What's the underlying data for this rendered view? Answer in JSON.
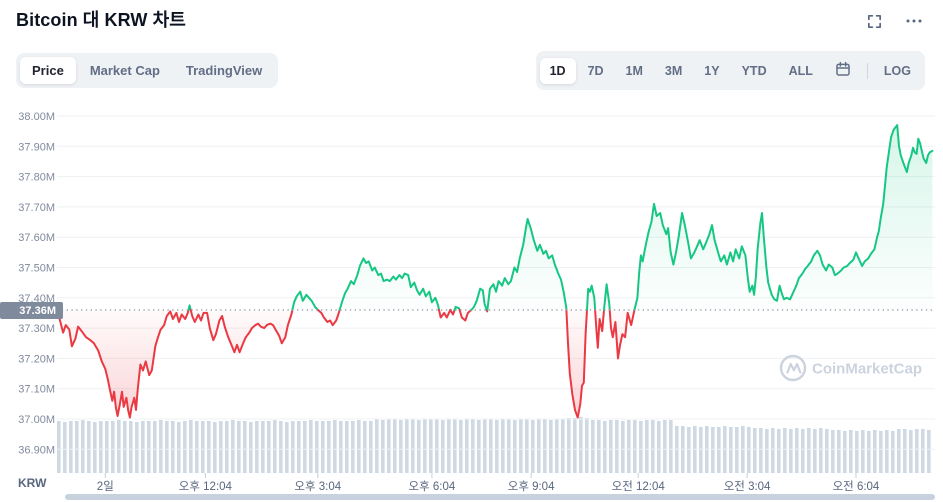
{
  "header": {
    "title": "Bitcoin 대 KRW 차트"
  },
  "tabs": {
    "items": [
      "Price",
      "Market Cap",
      "TradingView"
    ],
    "active": "Price"
  },
  "ranges": {
    "items": [
      "1D",
      "7D",
      "1M",
      "3M",
      "1Y",
      "YTD",
      "ALL"
    ],
    "active": "1D",
    "log_label": "LOG"
  },
  "icons": {
    "fullscreen": "fullscreen-expand-icon",
    "more": "ellipsis-icon",
    "calendar": "calendar-icon"
  },
  "chart_data": {
    "type": "line",
    "title": "Bitcoin 대 KRW 차트",
    "unit": "KRW",
    "currency_pair": "BTC/KRW",
    "baseline": 37.36,
    "current_price_label": "37.36M",
    "watermark": "CoinMarketCap",
    "grid": true,
    "ylim": [
      36.85,
      38.02
    ],
    "colors": {
      "up": "#16c784",
      "down": "#ea3943",
      "volume": "#cfd9e4"
    },
    "y_ticks": [
      {
        "label": "38.00M",
        "value": 38.0
      },
      {
        "label": "37.90M",
        "value": 37.9
      },
      {
        "label": "37.80M",
        "value": 37.8
      },
      {
        "label": "37.70M",
        "value": 37.7
      },
      {
        "label": "37.60M",
        "value": 37.6
      },
      {
        "label": "37.50M",
        "value": 37.5
      },
      {
        "label": "37.40M",
        "value": 37.4
      },
      {
        "label": "37.30M",
        "value": 37.3
      },
      {
        "label": "37.20M",
        "value": 37.2
      },
      {
        "label": "37.10M",
        "value": 37.1
      },
      {
        "label": "37.00M",
        "value": 37.0
      },
      {
        "label": "36.90M",
        "value": 36.9
      }
    ],
    "x_ticks": [
      {
        "label": "2일",
        "pct": 5.5
      },
      {
        "label": "오후 12:04",
        "pct": 16.9
      },
      {
        "label": "오후 3:04",
        "pct": 29.7
      },
      {
        "label": "오후 6:04",
        "pct": 42.7
      },
      {
        "label": "오후 9:04",
        "pct": 54.0
      },
      {
        "label": "오전 12:04",
        "pct": 66.2
      },
      {
        "label": "오전 3:04",
        "pct": 78.6
      },
      {
        "label": "오전 6:04",
        "pct": 91.0
      }
    ],
    "points": [
      [
        0,
        37.37
      ],
      [
        0.3,
        37.33
      ],
      [
        0.7,
        37.285
      ],
      [
        1,
        37.31
      ],
      [
        1.4,
        37.295
      ],
      [
        1.7,
        37.24
      ],
      [
        2.1,
        37.265
      ],
      [
        2.4,
        37.305
      ],
      [
        2.8,
        37.29
      ],
      [
        3.3,
        37.27
      ],
      [
        3.8,
        37.26
      ],
      [
        4.2,
        37.25
      ],
      [
        4.7,
        37.225
      ],
      [
        5.1,
        37.19
      ],
      [
        5.5,
        37.165
      ],
      [
        5.8,
        37.13
      ],
      [
        6,
        37.1
      ],
      [
        6.3,
        37.06
      ],
      [
        6.5,
        37.09
      ],
      [
        6.7,
        37.04
      ],
      [
        6.9,
        37.01
      ],
      [
        7.2,
        37.055
      ],
      [
        7.4,
        37.09
      ],
      [
        7.6,
        37.04
      ],
      [
        7.9,
        37.07
      ],
      [
        8.1,
        37.03
      ],
      [
        8.3,
        37.005
      ],
      [
        8.5,
        37.04
      ],
      [
        8.8,
        37.07
      ],
      [
        9,
        37.03
      ],
      [
        9.2,
        37.1
      ],
      [
        9.5,
        37.18
      ],
      [
        9.8,
        37.16
      ],
      [
        10.1,
        37.19
      ],
      [
        10.5,
        37.145
      ],
      [
        10.8,
        37.16
      ],
      [
        11.2,
        37.24
      ],
      [
        11.5,
        37.27
      ],
      [
        11.8,
        37.295
      ],
      [
        12.2,
        37.31
      ],
      [
        12.5,
        37.34
      ],
      [
        12.9,
        37.355
      ],
      [
        13.2,
        37.33
      ],
      [
        13.6,
        37.35
      ],
      [
        13.9,
        37.32
      ],
      [
        14.2,
        37.345
      ],
      [
        14.6,
        37.33
      ],
      [
        14.9,
        37.35
      ],
      [
        15.1,
        37.375
      ],
      [
        15.4,
        37.34
      ],
      [
        15.7,
        37.32
      ],
      [
        16.1,
        37.345
      ],
      [
        16.4,
        37.325
      ],
      [
        16.7,
        37.35
      ],
      [
        17.1,
        37.35
      ],
      [
        17.4,
        37.3
      ],
      [
        17.8,
        37.26
      ],
      [
        18.1,
        37.28
      ],
      [
        18.5,
        37.325
      ],
      [
        18.8,
        37.34
      ],
      [
        19.1,
        37.305
      ],
      [
        19.5,
        37.27
      ],
      [
        19.8,
        37.25
      ],
      [
        20.2,
        37.22
      ],
      [
        20.5,
        37.245
      ],
      [
        20.8,
        37.22
      ],
      [
        21.2,
        37.25
      ],
      [
        21.5,
        37.27
      ],
      [
        21.9,
        37.285
      ],
      [
        22.2,
        37.3
      ],
      [
        22.6,
        37.31
      ],
      [
        22.9,
        37.315
      ],
      [
        23.2,
        37.305
      ],
      [
        23.6,
        37.3
      ],
      [
        23.9,
        37.31
      ],
      [
        24.3,
        37.315
      ],
      [
        24.6,
        37.31
      ],
      [
        24.9,
        37.295
      ],
      [
        25.3,
        37.275
      ],
      [
        25.6,
        37.25
      ],
      [
        26,
        37.27
      ],
      [
        26.3,
        37.31
      ],
      [
        26.7,
        37.345
      ],
      [
        27,
        37.385
      ],
      [
        27.3,
        37.405
      ],
      [
        27.7,
        37.42
      ],
      [
        28,
        37.39
      ],
      [
        28.4,
        37.41
      ],
      [
        28.7,
        37.4
      ],
      [
        29,
        37.39
      ],
      [
        29.4,
        37.37
      ],
      [
        29.7,
        37.36
      ],
      [
        30.1,
        37.35
      ],
      [
        30.4,
        37.335
      ],
      [
        30.8,
        37.32
      ],
      [
        31.1,
        37.325
      ],
      [
        31.4,
        37.31
      ],
      [
        31.8,
        37.325
      ],
      [
        32.1,
        37.35
      ],
      [
        32.5,
        37.39
      ],
      [
        32.8,
        37.415
      ],
      [
        33.1,
        37.43
      ],
      [
        33.5,
        37.455
      ],
      [
        33.8,
        37.445
      ],
      [
        34.2,
        37.475
      ],
      [
        34.5,
        37.505
      ],
      [
        34.9,
        37.53
      ],
      [
        35.2,
        37.515
      ],
      [
        35.5,
        37.52
      ],
      [
        35.9,
        37.49
      ],
      [
        36.2,
        37.5
      ],
      [
        36.6,
        37.475
      ],
      [
        36.9,
        37.48
      ],
      [
        37.2,
        37.455
      ],
      [
        37.6,
        37.46
      ],
      [
        37.9,
        37.455
      ],
      [
        38.3,
        37.47
      ],
      [
        38.6,
        37.46
      ],
      [
        39,
        37.475
      ],
      [
        39.3,
        37.465
      ],
      [
        39.6,
        37.48
      ],
      [
        40,
        37.475
      ],
      [
        40.3,
        37.435
      ],
      [
        40.7,
        37.45
      ],
      [
        41,
        37.425
      ],
      [
        41.3,
        37.41
      ],
      [
        41.7,
        37.43
      ],
      [
        42,
        37.405
      ],
      [
        42.4,
        37.42
      ],
      [
        42.7,
        37.385
      ],
      [
        43.1,
        37.4
      ],
      [
        43.4,
        37.375
      ],
      [
        43.7,
        37.335
      ],
      [
        44.1,
        37.35
      ],
      [
        44.4,
        37.335
      ],
      [
        44.8,
        37.36
      ],
      [
        45.1,
        37.345
      ],
      [
        45.4,
        37.37
      ],
      [
        45.8,
        37.365
      ],
      [
        46.1,
        37.335
      ],
      [
        46.5,
        37.325
      ],
      [
        46.8,
        37.35
      ],
      [
        47.2,
        37.36
      ],
      [
        47.5,
        37.37
      ],
      [
        47.8,
        37.39
      ],
      [
        48.2,
        37.43
      ],
      [
        48.5,
        37.425
      ],
      [
        48.7,
        37.38
      ],
      [
        49,
        37.355
      ],
      [
        49.3,
        37.43
      ],
      [
        49.7,
        37.445
      ],
      [
        50,
        37.42
      ],
      [
        50.3,
        37.455
      ],
      [
        50.7,
        37.44
      ],
      [
        51,
        37.465
      ],
      [
        51.4,
        37.445
      ],
      [
        51.7,
        37.455
      ],
      [
        52.1,
        37.5
      ],
      [
        52.4,
        37.485
      ],
      [
        52.7,
        37.53
      ],
      [
        53.1,
        37.575
      ],
      [
        53.4,
        37.63
      ],
      [
        53.6,
        37.66
      ],
      [
        54,
        37.625
      ],
      [
        54.3,
        37.59
      ],
      [
        54.7,
        37.555
      ],
      [
        55,
        37.575
      ],
      [
        55.4,
        37.545
      ],
      [
        55.7,
        37.555
      ],
      [
        56,
        37.53
      ],
      [
        56.4,
        37.54
      ],
      [
        56.7,
        37.51
      ],
      [
        57.1,
        37.48
      ],
      [
        57.4,
        37.46
      ],
      [
        57.7,
        37.42
      ],
      [
        58,
        37.37
      ],
      [
        58.2,
        37.25
      ],
      [
        58.4,
        37.15
      ],
      [
        58.7,
        37.08
      ],
      [
        59,
        37.03
      ],
      [
        59.3,
        37.005
      ],
      [
        59.6,
        37.05
      ],
      [
        59.8,
        37.11
      ],
      [
        60,
        37.12
      ],
      [
        60.2,
        37.28
      ],
      [
        60.5,
        37.43
      ],
      [
        60.7,
        37.42
      ],
      [
        60.9,
        37.44
      ],
      [
        61.2,
        37.4
      ],
      [
        61.4,
        37.31
      ],
      [
        61.6,
        37.235
      ],
      [
        61.8,
        37.33
      ],
      [
        62.1,
        37.29
      ],
      [
        62.3,
        37.36
      ],
      [
        62.6,
        37.445
      ],
      [
        62.9,
        37.38
      ],
      [
        63.1,
        37.3
      ],
      [
        63.3,
        37.27
      ],
      [
        63.6,
        37.32
      ],
      [
        63.9,
        37.2
      ],
      [
        64.1,
        37.24
      ],
      [
        64.4,
        37.28
      ],
      [
        64.7,
        37.27
      ],
      [
        65,
        37.35
      ],
      [
        65.4,
        37.31
      ],
      [
        65.7,
        37.35
      ],
      [
        66.1,
        37.4
      ],
      [
        66.3,
        37.48
      ],
      [
        66.5,
        37.54
      ],
      [
        66.7,
        37.52
      ],
      [
        67.1,
        37.58
      ],
      [
        67.4,
        37.62
      ],
      [
        67.7,
        37.65
      ],
      [
        68,
        37.71
      ],
      [
        68.3,
        37.67
      ],
      [
        68.7,
        37.68
      ],
      [
        69,
        37.64
      ],
      [
        69.4,
        37.61
      ],
      [
        69.6,
        37.63
      ],
      [
        69.9,
        37.55
      ],
      [
        70.2,
        37.51
      ],
      [
        70.5,
        37.55
      ],
      [
        70.8,
        37.6
      ],
      [
        71.2,
        37.68
      ],
      [
        71.5,
        37.64
      ],
      [
        71.9,
        37.58
      ],
      [
        72.2,
        37.53
      ],
      [
        72.6,
        37.55
      ],
      [
        72.9,
        37.57
      ],
      [
        73.2,
        37.59
      ],
      [
        73.6,
        37.56
      ],
      [
        73.9,
        37.58
      ],
      [
        74.3,
        37.61
      ],
      [
        74.6,
        37.64
      ],
      [
        74.9,
        37.59
      ],
      [
        75.3,
        37.55
      ],
      [
        75.6,
        37.52
      ],
      [
        76,
        37.54
      ],
      [
        76.3,
        37.51
      ],
      [
        76.7,
        37.55
      ],
      [
        77,
        37.52
      ],
      [
        77.3,
        37.56
      ],
      [
        77.7,
        37.53
      ],
      [
        78,
        37.57
      ],
      [
        78.4,
        37.54
      ],
      [
        78.7,
        37.46
      ],
      [
        78.9,
        37.42
      ],
      [
        79.2,
        37.44
      ],
      [
        79.4,
        37.41
      ],
      [
        79.6,
        37.47
      ],
      [
        79.8,
        37.56
      ],
      [
        80.1,
        37.645
      ],
      [
        80.3,
        37.68
      ],
      [
        80.5,
        37.6
      ],
      [
        80.8,
        37.5
      ],
      [
        81,
        37.45
      ],
      [
        81.2,
        37.43
      ],
      [
        81.4,
        37.41
      ],
      [
        81.7,
        37.395
      ],
      [
        82,
        37.39
      ],
      [
        82.3,
        37.44
      ],
      [
        82.6,
        37.41
      ],
      [
        82.8,
        37.395
      ],
      [
        83.1,
        37.4
      ],
      [
        83.5,
        37.395
      ],
      [
        83.8,
        37.415
      ],
      [
        84.2,
        37.44
      ],
      [
        84.5,
        37.465
      ],
      [
        84.9,
        37.48
      ],
      [
        85.2,
        37.495
      ],
      [
        85.5,
        37.505
      ],
      [
        85.9,
        37.52
      ],
      [
        86.2,
        37.54
      ],
      [
        86.6,
        37.555
      ],
      [
        86.9,
        37.54
      ],
      [
        87.2,
        37.51
      ],
      [
        87.6,
        37.49
      ],
      [
        87.9,
        37.51
      ],
      [
        88.3,
        37.5
      ],
      [
        88.6,
        37.475
      ],
      [
        88.9,
        37.48
      ],
      [
        89.3,
        37.49
      ],
      [
        89.6,
        37.5
      ],
      [
        90,
        37.505
      ],
      [
        90.3,
        37.515
      ],
      [
        90.7,
        37.525
      ],
      [
        91,
        37.55
      ],
      [
        91.3,
        37.53
      ],
      [
        91.7,
        37.505
      ],
      [
        92,
        37.52
      ],
      [
        92.4,
        37.53
      ],
      [
        92.7,
        37.545
      ],
      [
        93.1,
        37.56
      ],
      [
        93.4,
        37.6
      ],
      [
        93.6,
        37.62
      ],
      [
        93.8,
        37.66
      ],
      [
        94.1,
        37.71
      ],
      [
        94.3,
        37.77
      ],
      [
        94.5,
        37.83
      ],
      [
        94.8,
        37.89
      ],
      [
        95,
        37.93
      ],
      [
        95.3,
        37.955
      ],
      [
        95.7,
        37.97
      ],
      [
        95.9,
        37.9
      ],
      [
        96.1,
        37.87
      ],
      [
        96.4,
        37.845
      ],
      [
        96.6,
        37.83
      ],
      [
        96.8,
        37.815
      ],
      [
        97,
        37.845
      ],
      [
        97.3,
        37.87
      ],
      [
        97.5,
        37.895
      ],
      [
        97.7,
        37.88
      ],
      [
        97.9,
        37.875
      ],
      [
        98.1,
        37.925
      ],
      [
        98.3,
        37.91
      ],
      [
        98.5,
        37.885
      ],
      [
        98.7,
        37.86
      ],
      [
        99,
        37.845
      ],
      [
        99.2,
        37.87
      ],
      [
        99.4,
        37.88
      ],
      [
        99.7,
        37.885
      ]
    ],
    "volume_bar_heights": [
      52,
      51,
      52,
      52,
      53,
      52,
      51,
      52,
      52,
      52,
      53,
      52,
      52,
      51,
      52,
      52,
      52,
      53,
      52,
      52,
      51,
      52,
      53,
      52,
      52,
      52,
      51,
      52,
      52,
      53,
      52,
      52,
      51,
      52,
      52,
      52,
      53,
      52,
      51,
      52,
      52,
      52,
      53,
      52,
      52,
      52,
      53,
      52,
      52,
      52,
      53,
      52,
      52,
      54,
      53,
      54,
      54,
      53,
      54,
      54,
      53,
      54,
      54,
      54,
      53,
      54,
      54,
      53,
      54,
      54,
      53,
      54,
      54,
      53,
      54,
      54,
      53,
      54,
      54,
      53,
      54,
      54,
      53,
      54,
      54,
      55,
      55,
      56,
      55,
      53,
      53,
      52,
      53,
      53,
      52,
      53,
      53,
      52,
      53,
      53,
      52,
      53,
      53,
      47,
      47,
      46,
      47,
      46,
      47,
      46,
      46,
      47,
      46,
      46,
      47,
      46,
      45,
      45,
      44,
      45,
      44,
      45,
      44,
      45,
      44,
      45,
      44,
      45,
      44,
      43,
      43,
      42,
      43,
      42,
      43,
      42,
      43,
      42,
      43,
      42,
      44,
      44,
      43,
      44,
      44,
      43
    ]
  }
}
